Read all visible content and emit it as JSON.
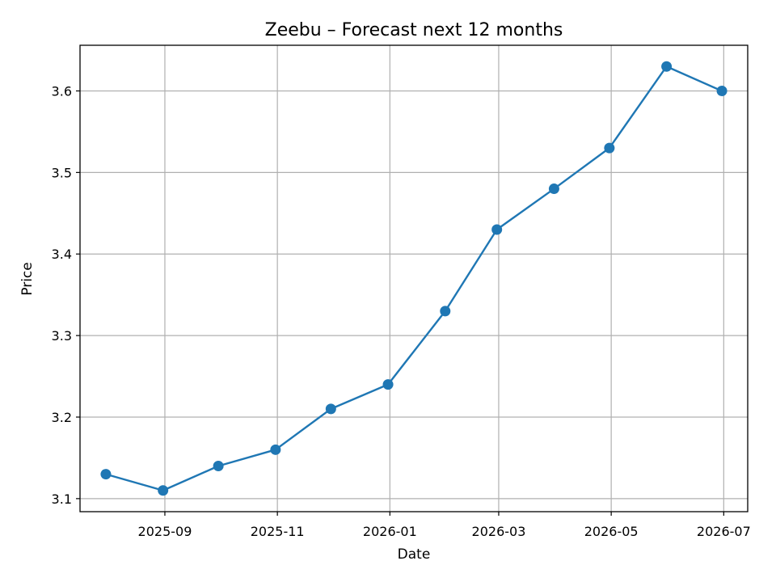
{
  "chart_data": {
    "type": "line",
    "title": "Zeebu – Forecast next 12 months",
    "xlabel": "Date",
    "ylabel": "Price",
    "x": [
      "2025-07-31",
      "2025-08-31",
      "2025-09-30",
      "2025-10-31",
      "2025-11-30",
      "2025-12-31",
      "2026-01-31",
      "2026-02-28",
      "2026-03-31",
      "2026-04-30",
      "2026-05-31",
      "2026-06-30"
    ],
    "series": [
      {
        "values": [
          3.13,
          3.11,
          3.14,
          3.16,
          3.21,
          3.24,
          3.33,
          3.43,
          3.48,
          3.53,
          3.63,
          3.6
        ],
        "color": "#1f77b4",
        "marker": "circle"
      }
    ],
    "xlim": [
      "2025-07-17",
      "2026-07-14"
    ],
    "ylim": [
      3.084,
      3.656
    ],
    "x_ticks": [
      "2025-09-01",
      "2025-11-01",
      "2026-01-01",
      "2026-03-01",
      "2026-05-01",
      "2026-07-01"
    ],
    "x_tick_labels": [
      "2025-09",
      "2025-11",
      "2026-01",
      "2026-03",
      "2026-05",
      "2026-07"
    ],
    "y_ticks": [
      3.1,
      3.2,
      3.3,
      3.4,
      3.5,
      3.6
    ],
    "y_tick_labels": [
      "3.1",
      "3.2",
      "3.3",
      "3.4",
      "3.5",
      "3.6"
    ],
    "grid": true,
    "legend": "none"
  }
}
